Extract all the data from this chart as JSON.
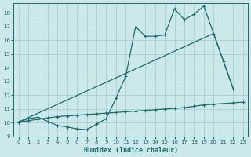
{
  "xlabel": "Humidex (Indice chaleur)",
  "bg_color": "#cce8ea",
  "grid_color": "#aacfd2",
  "line_color": "#1a6e6e",
  "xlim": [
    -0.5,
    23.5
  ],
  "ylim": [
    9.0,
    18.7
  ],
  "yticks": [
    9,
    10,
    11,
    12,
    13,
    14,
    15,
    16,
    17,
    18
  ],
  "xticks": [
    0,
    1,
    2,
    3,
    4,
    5,
    6,
    7,
    8,
    9,
    10,
    11,
    12,
    13,
    14,
    15,
    16,
    17,
    18,
    19,
    20,
    21,
    22,
    23
  ],
  "line1_x": [
    0,
    1,
    2,
    3,
    4,
    5,
    6,
    7,
    8,
    9,
    10,
    11,
    12,
    13,
    14,
    15,
    16,
    17,
    18,
    19,
    20,
    21,
    22,
    23
  ],
  "line1_y": [
    10.05,
    10.15,
    10.25,
    10.35,
    10.45,
    10.5,
    10.55,
    10.6,
    10.65,
    10.7,
    10.75,
    10.8,
    10.85,
    10.9,
    10.95,
    11.0,
    11.05,
    11.1,
    11.2,
    11.3,
    11.35,
    11.4,
    11.45,
    11.5
  ],
  "line2_x": [
    0,
    1,
    2,
    3,
    4,
    5,
    6,
    7,
    8,
    9,
    10,
    11,
    12,
    13,
    14,
    15,
    16,
    17,
    18,
    19,
    20,
    21,
    22
  ],
  "line2_y": [
    10.05,
    10.3,
    10.4,
    10.1,
    9.8,
    9.7,
    9.55,
    9.5,
    9.9,
    10.3,
    11.8,
    13.4,
    17.0,
    16.3,
    16.3,
    16.4,
    18.3,
    17.5,
    17.9,
    18.5,
    16.5,
    14.5,
    12.5
  ],
  "line3_x": [
    0,
    20,
    22
  ],
  "line3_y": [
    10.05,
    16.5,
    12.5
  ]
}
